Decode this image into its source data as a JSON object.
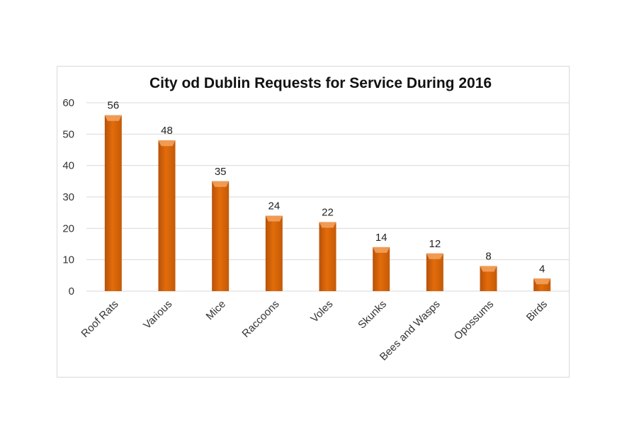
{
  "chart_data": {
    "type": "bar",
    "title": "City od Dublin Requests for Service During 2016",
    "xlabel": "",
    "ylabel": "",
    "categories": [
      "Roof Rats",
      "Various",
      "Mice",
      "Raccoons",
      "Voles",
      "Skunks",
      "Bees and Wasps",
      "Opossums",
      "Birds"
    ],
    "values": [
      56,
      48,
      35,
      24,
      22,
      14,
      12,
      8,
      4
    ],
    "ylim": [
      0,
      60
    ],
    "yticks": [
      0,
      10,
      20,
      30,
      40,
      50,
      60
    ],
    "grid": true,
    "legend": "none",
    "bar_color": "#E36C0A",
    "bar_top_color": "#F4A460",
    "gridline_color": "#d9d9d9"
  }
}
